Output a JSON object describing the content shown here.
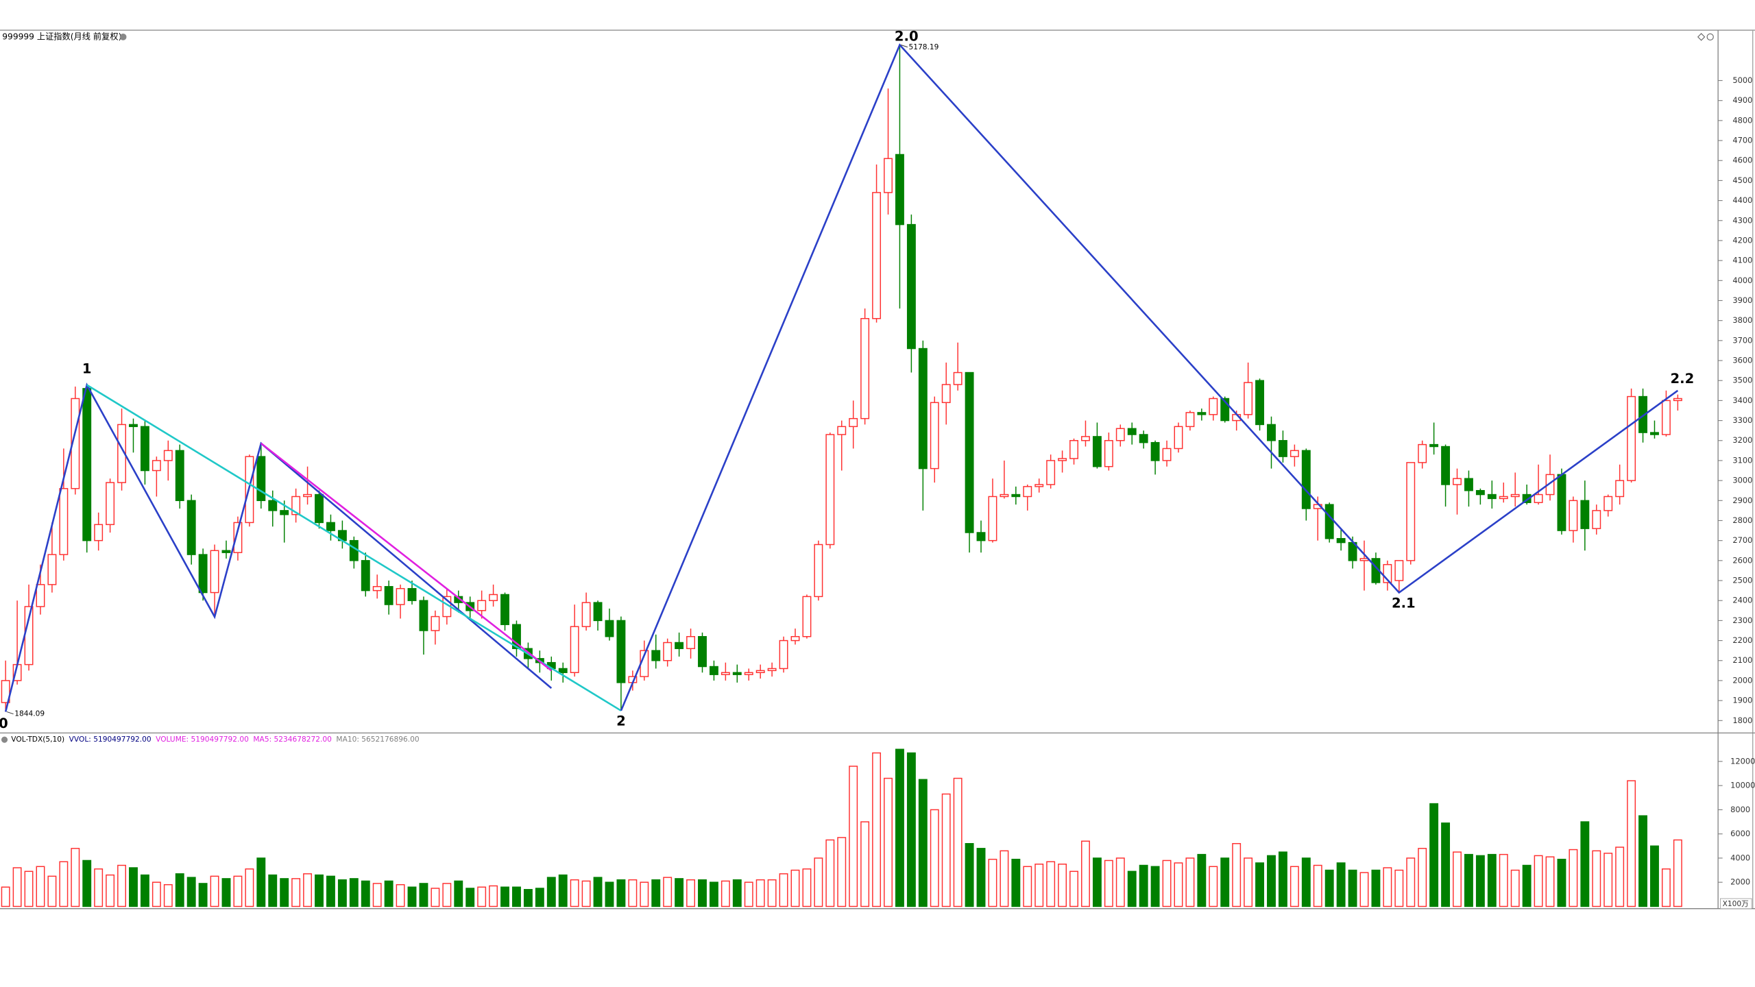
{
  "header": {
    "title": "999999 上证指数(月线 前复权)"
  },
  "chart_data": {
    "type": "candlestick",
    "up_color": "#ff3030",
    "down_color": "#008000",
    "ylim": [
      1738,
      5246
    ],
    "yticks": [
      1800,
      1900,
      2000,
      2100,
      2200,
      2300,
      2400,
      2500,
      2600,
      2700,
      2800,
      2900,
      3000,
      3100,
      3200,
      3300,
      3400,
      3500,
      3600,
      3700,
      3800,
      3900,
      4000,
      4100,
      4200,
      4300,
      4400,
      4500,
      4600,
      4700,
      4800,
      4900,
      5000
    ],
    "candles": [
      [
        1890,
        2100,
        1844.09,
        2000
      ],
      [
        2000,
        2400,
        1980,
        2080
      ],
      [
        2080,
        2480,
        2050,
        2370
      ],
      [
        2370,
        2580,
        2330,
        2480
      ],
      [
        2480,
        2790,
        2440,
        2630
      ],
      [
        2630,
        3160,
        2600,
        2960
      ],
      [
        2960,
        3470,
        2930,
        3410
      ],
      [
        3460,
        3478,
        2640,
        2700
      ],
      [
        2700,
        2840,
        2650,
        2780
      ],
      [
        2780,
        3010,
        2740,
        2990
      ],
      [
        2990,
        3360,
        2950,
        3280
      ],
      [
        3280,
        3310,
        3140,
        3270
      ],
      [
        3270,
        3300,
        2980,
        3050
      ],
      [
        3050,
        3120,
        2920,
        3100
      ],
      [
        3100,
        3200,
        3000,
        3150
      ],
      [
        3150,
        3180,
        2860,
        2900
      ],
      [
        2900,
        2930,
        2580,
        2630
      ],
      [
        2630,
        2660,
        2400,
        2440
      ],
      [
        2440,
        2680,
        2319,
        2650
      ],
      [
        2650,
        2700,
        2610,
        2640
      ],
      [
        2640,
        2820,
        2600,
        2790
      ],
      [
        2790,
        3130,
        2770,
        3120
      ],
      [
        3120,
        3186,
        2860,
        2900
      ],
      [
        2900,
        2950,
        2770,
        2850
      ],
      [
        2850,
        2900,
        2690,
        2830
      ],
      [
        2830,
        2960,
        2790,
        2920
      ],
      [
        2920,
        3070,
        2880,
        2930
      ],
      [
        2930,
        2950,
        2760,
        2790
      ],
      [
        2790,
        2830,
        2700,
        2750
      ],
      [
        2750,
        2800,
        2660,
        2700
      ],
      [
        2700,
        2720,
        2560,
        2600
      ],
      [
        2600,
        2640,
        2420,
        2450
      ],
      [
        2450,
        2530,
        2410,
        2470
      ],
      [
        2470,
        2500,
        2330,
        2380
      ],
      [
        2380,
        2480,
        2310,
        2460
      ],
      [
        2460,
        2500,
        2380,
        2400
      ],
      [
        2400,
        2420,
        2130,
        2250
      ],
      [
        2250,
        2350,
        2180,
        2320
      ],
      [
        2320,
        2460,
        2280,
        2420
      ],
      [
        2420,
        2450,
        2340,
        2390
      ],
      [
        2390,
        2420,
        2300,
        2350
      ],
      [
        2350,
        2450,
        2310,
        2400
      ],
      [
        2400,
        2480,
        2370,
        2430
      ],
      [
        2430,
        2440,
        2250,
        2280
      ],
      [
        2280,
        2300,
        2120,
        2160
      ],
      [
        2160,
        2190,
        2060,
        2110
      ],
      [
        2110,
        2150,
        2040,
        2090
      ],
      [
        2090,
        2120,
        2000,
        2060
      ],
      [
        2060,
        2090,
        1990,
        2040
      ],
      [
        2040,
        2380,
        2020,
        2270
      ],
      [
        2270,
        2440,
        2250,
        2390
      ],
      [
        2390,
        2400,
        2250,
        2300
      ],
      [
        2300,
        2360,
        2200,
        2220
      ],
      [
        2300,
        2320,
        1849.65,
        1990
      ],
      [
        1990,
        2050,
        1950,
        2020
      ],
      [
        2020,
        2200,
        2000,
        2150
      ],
      [
        2150,
        2230,
        2060,
        2100
      ],
      [
        2100,
        2210,
        2070,
        2190
      ],
      [
        2190,
        2240,
        2120,
        2160
      ],
      [
        2160,
        2260,
        2110,
        2220
      ],
      [
        2220,
        2240,
        2040,
        2070
      ],
      [
        2070,
        2100,
        2000,
        2030
      ],
      [
        2030,
        2090,
        2000,
        2040
      ],
      [
        2040,
        2080,
        1990,
        2030
      ],
      [
        2030,
        2060,
        2000,
        2040
      ],
      [
        2040,
        2080,
        2010,
        2050
      ],
      [
        2050,
        2090,
        2020,
        2060
      ],
      [
        2060,
        2220,
        2040,
        2200
      ],
      [
        2200,
        2260,
        2180,
        2220
      ],
      [
        2220,
        2430,
        2210,
        2420
      ],
      [
        2420,
        2700,
        2400,
        2680
      ],
      [
        2680,
        3240,
        2660,
        3230
      ],
      [
        3230,
        3300,
        3050,
        3270
      ],
      [
        3270,
        3400,
        3160,
        3310
      ],
      [
        3310,
        3860,
        3280,
        3810
      ],
      [
        3810,
        4580,
        3790,
        4440
      ],
      [
        4440,
        4960,
        4330,
        4610
      ],
      [
        4630,
        5178.19,
        3860,
        4280
      ],
      [
        4280,
        4330,
        3540,
        3660
      ],
      [
        3660,
        3700,
        2850,
        3060
      ],
      [
        3060,
        3420,
        2990,
        3390
      ],
      [
        3390,
        3590,
        3280,
        3480
      ],
      [
        3480,
        3690,
        3450,
        3540
      ],
      [
        3540,
        3540,
        2640,
        2740
      ],
      [
        2740,
        2800,
        2640,
        2700
      ],
      [
        2700,
        3010,
        2690,
        2920
      ],
      [
        2920,
        3100,
        2910,
        2930
      ],
      [
        2930,
        2970,
        2880,
        2920
      ],
      [
        2920,
        2980,
        2850,
        2970
      ],
      [
        2970,
        3010,
        2940,
        2980
      ],
      [
        2980,
        3130,
        2960,
        3100
      ],
      [
        3100,
        3150,
        3040,
        3110
      ],
      [
        3110,
        3210,
        3080,
        3200
      ],
      [
        3200,
        3300,
        3170,
        3220
      ],
      [
        3220,
        3290,
        3060,
        3070
      ],
      [
        3070,
        3240,
        3050,
        3200
      ],
      [
        3200,
        3280,
        3170,
        3260
      ],
      [
        3260,
        3290,
        3180,
        3230
      ],
      [
        3230,
        3250,
        3160,
        3190
      ],
      [
        3190,
        3200,
        3030,
        3100
      ],
      [
        3100,
        3200,
        3070,
        3160
      ],
      [
        3160,
        3290,
        3140,
        3270
      ],
      [
        3270,
        3350,
        3250,
        3340
      ],
      [
        3340,
        3360,
        3300,
        3330
      ],
      [
        3330,
        3420,
        3300,
        3410
      ],
      [
        3410,
        3420,
        3290,
        3300
      ],
      [
        3300,
        3350,
        3250,
        3330
      ],
      [
        3330,
        3590,
        3310,
        3490
      ],
      [
        3500,
        3510,
        3250,
        3280
      ],
      [
        3280,
        3320,
        3060,
        3200
      ],
      [
        3200,
        3250,
        3090,
        3120
      ],
      [
        3120,
        3180,
        3070,
        3150
      ],
      [
        3150,
        3160,
        2800,
        2860
      ],
      [
        2860,
        2920,
        2700,
        2880
      ],
      [
        2880,
        2890,
        2690,
        2710
      ],
      [
        2710,
        2760,
        2650,
        2690
      ],
      [
        2690,
        2720,
        2560,
        2600
      ],
      [
        2600,
        2700,
        2450,
        2610
      ],
      [
        2610,
        2640,
        2480,
        2490
      ],
      [
        2490,
        2600,
        2450,
        2580
      ],
      [
        2500,
        2600,
        2440,
        2600
      ],
      [
        2600,
        3090,
        2580,
        3090
      ],
      [
        3090,
        3200,
        3060,
        3180
      ],
      [
        3180,
        3290,
        3130,
        3170
      ],
      [
        3170,
        3180,
        2870,
        2980
      ],
      [
        2980,
        3060,
        2830,
        3010
      ],
      [
        3010,
        3050,
        2870,
        2950
      ],
      [
        2950,
        2960,
        2880,
        2930
      ],
      [
        2930,
        3000,
        2860,
        2910
      ],
      [
        2910,
        2990,
        2890,
        2920
      ],
      [
        2920,
        3040,
        2870,
        2930
      ],
      [
        2930,
        2980,
        2880,
        2890
      ],
      [
        2890,
        3080,
        2880,
        2930
      ],
      [
        2930,
        3130,
        2900,
        3030
      ],
      [
        3030,
        3060,
        2730,
        2750
      ],
      [
        2750,
        2920,
        2690,
        2900
      ],
      [
        2900,
        3000,
        2650,
        2760
      ],
      [
        2760,
        2880,
        2730,
        2850
      ],
      [
        2850,
        2930,
        2820,
        2920
      ],
      [
        2920,
        3080,
        2880,
        3000
      ],
      [
        3000,
        3460,
        2990,
        3420
      ],
      [
        3420,
        3460,
        3190,
        3240
      ],
      [
        3240,
        3300,
        3210,
        3230
      ],
      [
        3230,
        3450,
        3220,
        3400
      ],
      [
        3400,
        3430,
        3350,
        3410
      ]
    ],
    "drawings": [
      {
        "color": "#2b40c8",
        "points": [
          [
            0,
            1844.09
          ],
          [
            7,
            3478
          ],
          [
            18,
            2319
          ],
          [
            22,
            3186
          ],
          [
            47,
            1962
          ]
        ]
      },
      {
        "color": "#20c8c8",
        "points": [
          [
            7,
            3478
          ],
          [
            53,
            1849.65
          ]
        ]
      },
      {
        "color": "#e020e0",
        "points": [
          [
            22,
            3186
          ],
          [
            47,
            2050
          ]
        ]
      },
      {
        "color": "#2b40c8",
        "points": [
          [
            53,
            1849.65
          ],
          [
            77,
            5178.19
          ],
          [
            120,
            2440
          ],
          [
            144,
            3450
          ]
        ]
      }
    ],
    "waves": [
      {
        "label": "0",
        "index": 0,
        "value": 1844.09
      },
      {
        "label": "1",
        "index": 7,
        "value": 3478
      },
      {
        "label": "2",
        "index": 53,
        "value": 1849.65
      },
      {
        "label": "2.0",
        "index": 77,
        "value": 5178.19
      },
      {
        "label": "2.1",
        "index": 120,
        "value": 2440
      },
      {
        "label": "2.2",
        "index": 144,
        "value": 3450
      }
    ],
    "volume": {
      "type": "bar",
      "indicator": "VOL-TDX(5,10)",
      "readouts": [
        {
          "text": "VVOL: 5190497792.00",
          "color": "#000080"
        },
        {
          "text": "VOLUME: 5190497792.00",
          "color": "#e020e0"
        },
        {
          "text": "MA5: 5234678272.00",
          "color": "#e020e0"
        },
        {
          "text": "MA10: 5652176896.00",
          "color": "#808080"
        }
      ],
      "unit": "X100万",
      "ylim": [
        0,
        13240
      ],
      "yticks": [
        2000,
        4000,
        6000,
        8000,
        10000,
        12000
      ],
      "values": [
        1600,
        3200,
        2900,
        3300,
        2500,
        3700,
        4800,
        3800,
        3100,
        2600,
        3400,
        3200,
        2600,
        2000,
        1800,
        2700,
        2400,
        1900,
        2500,
        2300,
        2500,
        3100,
        4000,
        2600,
        2300,
        2300,
        2700,
        2600,
        2500,
        2200,
        2300,
        2100,
        1900,
        2100,
        1800,
        1600,
        1900,
        1500,
        1900,
        2100,
        1500,
        1600,
        1700,
        1600,
        1600,
        1400,
        1500,
        2400,
        2600,
        2200,
        2100,
        2400,
        2000,
        2200,
        2200,
        2000,
        2200,
        2400,
        2300,
        2200,
        2200,
        2000,
        2100,
        2200,
        2000,
        2200,
        2200,
        2700,
        3000,
        3100,
        4000,
        5500,
        5700,
        11600,
        7000,
        12700,
        10600,
        13000,
        12700,
        10500,
        8000,
        9300,
        10600,
        5200,
        4800,
        3900,
        4600,
        3900,
        3300,
        3500,
        3700,
        3500,
        2900,
        5400,
        4000,
        3800,
        4000,
        2900,
        3400,
        3300,
        3800,
        3600,
        4000,
        4300,
        3300,
        4000,
        5200,
        4000,
        3600,
        4200,
        4500,
        3300,
        4000,
        3400,
        3000,
        3600,
        3000,
        2800,
        3000,
        3200,
        3000,
        4000,
        4800,
        8500,
        6900,
        4500,
        4300,
        4200,
        4300,
        4300,
        3000,
        3400,
        4200,
        4100,
        3900,
        4700,
        7000,
        4600,
        4400,
        4900,
        10400,
        7500,
        5000,
        3100,
        5500
      ]
    }
  }
}
